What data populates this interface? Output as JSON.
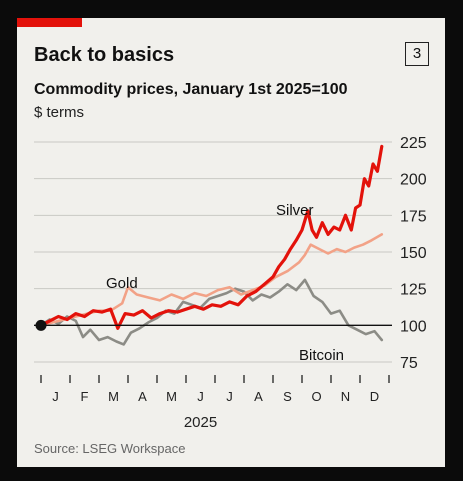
{
  "header": {
    "title": "Back to basics",
    "badge": "3",
    "subtitle": "Commodity prices, January 1st 2025=100",
    "unit": "$ terms"
  },
  "footer": {
    "source": "Source: LSEG Workspace"
  },
  "colors": {
    "silver": "#e3120b",
    "gold": "#f2a287",
    "bitcoin": "#8c8c86",
    "grid": "#c9c9c4",
    "baseline": "#111111",
    "accent": "#e3120b"
  },
  "chart_data": {
    "type": "line",
    "xlabel": "2025",
    "ylabel": "",
    "ylim": [
      75,
      225
    ],
    "y_ticks": [
      75,
      100,
      125,
      150,
      175,
      200,
      225
    ],
    "baseline": 100,
    "grid": true,
    "x_ticks": [
      "J",
      "F",
      "M",
      "A",
      "M",
      "J",
      "J",
      "A",
      "S",
      "O",
      "N",
      "D"
    ],
    "x_range_months": [
      0,
      12
    ],
    "series": [
      {
        "name": "Silver",
        "x": [
          0,
          0.3,
          0.6,
          0.9,
          1.2,
          1.5,
          1.8,
          2.1,
          2.4,
          2.65,
          2.9,
          3.2,
          3.5,
          3.8,
          4.1,
          4.4,
          4.7,
          5.0,
          5.3,
          5.6,
          5.9,
          6.2,
          6.5,
          6.8,
          7.1,
          7.4,
          7.7,
          8.0,
          8.2,
          8.4,
          8.6,
          8.8,
          9.0,
          9.2,
          9.35,
          9.5,
          9.7,
          9.9,
          10.1,
          10.3,
          10.5,
          10.7,
          10.85,
          11.0,
          11.15,
          11.3,
          11.45,
          11.6,
          11.75
        ],
        "values": [
          100,
          103,
          106,
          104,
          108,
          106,
          110,
          109,
          111,
          98,
          108,
          107,
          110,
          105,
          108,
          110,
          109,
          111,
          113,
          111,
          114,
          113,
          116,
          114,
          120,
          123,
          128,
          133,
          140,
          145,
          152,
          158,
          165,
          178,
          165,
          160,
          170,
          162,
          167,
          165,
          175,
          165,
          180,
          182,
          200,
          195,
          210,
          205,
          222
        ]
      },
      {
        "name": "Gold",
        "x": [
          0,
          0.4,
          0.8,
          1.2,
          1.6,
          2.0,
          2.4,
          2.8,
          3.0,
          3.3,
          3.7,
          4.1,
          4.5,
          4.9,
          5.3,
          5.7,
          6.1,
          6.5,
          6.9,
          7.3,
          7.7,
          8.1,
          8.5,
          8.9,
          9.1,
          9.3,
          9.6,
          9.9,
          10.2,
          10.5,
          10.8,
          11.1,
          11.4,
          11.75
        ],
        "values": [
          100,
          102,
          104,
          106,
          108,
          110,
          110,
          115,
          126,
          121,
          119,
          117,
          121,
          118,
          122,
          120,
          124,
          126,
          121,
          124,
          127,
          133,
          137,
          143,
          148,
          155,
          152,
          149,
          152,
          150,
          153,
          155,
          158,
          162
        ]
      },
      {
        "name": "Bitcoin",
        "x": [
          0,
          0.3,
          0.6,
          0.9,
          1.2,
          1.45,
          1.7,
          2.0,
          2.3,
          2.6,
          2.85,
          3.1,
          3.4,
          3.7,
          4.0,
          4.3,
          4.6,
          4.9,
          5.2,
          5.5,
          5.8,
          6.1,
          6.4,
          6.7,
          7.0,
          7.3,
          7.6,
          7.9,
          8.2,
          8.5,
          8.8,
          9.1,
          9.4,
          9.7,
          10.0,
          10.3,
          10.6,
          10.9,
          11.2,
          11.5,
          11.75
        ],
        "values": [
          100,
          104,
          101,
          106,
          103,
          92,
          97,
          90,
          92,
          89,
          87,
          95,
          98,
          102,
          105,
          110,
          108,
          116,
          114,
          112,
          118,
          120,
          122,
          125,
          123,
          117,
          121,
          119,
          123,
          128,
          124,
          131,
          120,
          116,
          108,
          110,
          100,
          97,
          94,
          96,
          90
        ]
      }
    ]
  }
}
